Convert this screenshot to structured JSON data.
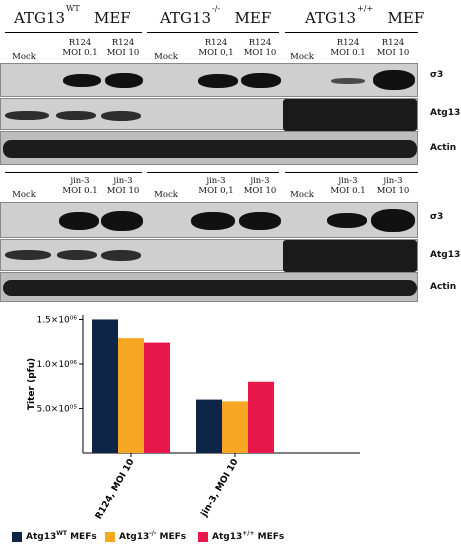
{
  "panel1": {
    "groups": [
      {
        "base": "ATG13",
        "sup": "WT",
        "suffix": "MEF"
      },
      {
        "base": "ATG13",
        "sup": "-/-",
        "suffix": "MEF"
      },
      {
        "base": "ATG13",
        "sup": "+/+",
        "suffix": "MEF"
      }
    ],
    "lanes": [
      [
        "Mock"
      ],
      [
        "R124",
        "MOI 0.1"
      ],
      [
        "R124",
        "MOI 10"
      ],
      [
        "Mock"
      ],
      [
        "R124",
        "MOI 0,1"
      ],
      [
        "R124",
        "MOI 10"
      ],
      [
        "Mock"
      ],
      [
        "R124",
        "MOI 0.1"
      ],
      [
        "R124",
        "MOI 10"
      ]
    ],
    "bands": [
      "σ3",
      "Atg13",
      "Actin"
    ]
  },
  "panel2": {
    "lanes": [
      [
        "Mock"
      ],
      [
        "jin-3",
        "MOI 0.1"
      ],
      [
        "jin-3",
        "MOI 10"
      ],
      [
        "Mock"
      ],
      [
        "jin-3",
        "MOI 0,1"
      ],
      [
        "jin-3",
        "MOI 10"
      ],
      [
        "Mock"
      ],
      [
        "jin-3",
        "MOI 0.1"
      ],
      [
        "jin-3",
        "MOI 10"
      ]
    ],
    "bands": [
      "σ3",
      "Atg13",
      "Actin"
    ]
  },
  "chart_data": {
    "type": "bar",
    "ylabel": "Titer (pfu)",
    "yticks": [
      "5.0×10⁰⁵",
      "1.0×10⁰⁶",
      "1.5×10⁰⁶"
    ],
    "ytick_values": [
      500000,
      1000000,
      1500000
    ],
    "ylim": [
      0,
      1550000
    ],
    "categories": [
      "R124, MOI 10",
      "jin-3, MOI 10"
    ],
    "series": [
      {
        "name": "Atg13WT MEFs",
        "base": "Atg13",
        "sup": "WT",
        "tail": " MEFs",
        "color": "#0d2547",
        "values": [
          1500000,
          600000
        ]
      },
      {
        "name": "Atg13-/- MEFs",
        "base": "Atg13",
        "sup": "-/-",
        "tail": " MEFs",
        "color": "#f5a623",
        "values": [
          1290000,
          580000
        ]
      },
      {
        "name": "Atg13+/+ MEFs",
        "base": "Atg13",
        "sup": "+/+",
        "tail": " MEFs",
        "color": "#e8184a",
        "values": [
          1240000,
          800000
        ]
      }
    ],
    "grid": false,
    "legend": "bottom"
  }
}
